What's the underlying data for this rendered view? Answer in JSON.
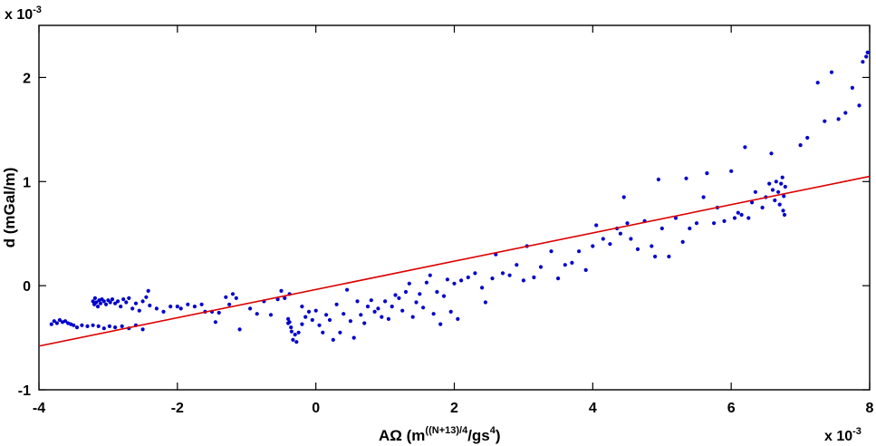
{
  "chart_data": {
    "type": "scatter",
    "xlabel_main": "AΩ  (m",
    "xlabel_sup1": "((N+13)/4",
    "xlabel_mid": "/gs",
    "xlabel_sup2": "4",
    "xlabel_end": ")",
    "ylabel": "d  (mGal/m)",
    "x_multiplier_base": "x 10",
    "x_multiplier_exp": "-3",
    "y_multiplier_base": "x 10",
    "y_multiplier_exp": "-3",
    "xlim": [
      -4,
      8
    ],
    "ylim": [
      -1,
      2.5
    ],
    "xticks": [
      -4,
      -2,
      0,
      2,
      4,
      6,
      8
    ],
    "xtick_labels": [
      "-4",
      "-2",
      "0",
      "2",
      "4",
      "6",
      "8"
    ],
    "yticks": [
      -1,
      0,
      1,
      2
    ],
    "ytick_labels": [
      "-1",
      "0",
      "1",
      "2"
    ],
    "grid": false,
    "colors": {
      "points": "#0000cc",
      "fit_line": "#dd0000",
      "axes": "#000000"
    },
    "fit_line": {
      "x": [
        -4,
        8
      ],
      "y": [
        -0.58,
        1.05
      ]
    },
    "series": [
      {
        "points": [
          [
            -3.82,
            -0.37
          ],
          [
            -3.78,
            -0.34
          ],
          [
            -3.74,
            -0.36
          ],
          [
            -3.7,
            -0.33
          ],
          [
            -3.66,
            -0.35
          ],
          [
            -3.62,
            -0.34
          ],
          [
            -3.58,
            -0.36
          ],
          [
            -3.54,
            -0.37
          ],
          [
            -3.5,
            -0.38
          ],
          [
            -3.45,
            -0.4
          ],
          [
            -3.38,
            -0.38
          ],
          [
            -3.3,
            -0.39
          ],
          [
            -3.22,
            -0.38
          ],
          [
            -3.14,
            -0.39
          ],
          [
            -3.06,
            -0.41
          ],
          [
            -2.98,
            -0.39
          ],
          [
            -2.9,
            -0.4
          ],
          [
            -2.8,
            -0.39
          ],
          [
            -2.7,
            -0.41
          ],
          [
            -2.6,
            -0.38
          ],
          [
            -2.5,
            -0.42
          ],
          [
            -3.22,
            -0.15
          ],
          [
            -3.2,
            -0.18
          ],
          [
            -3.19,
            -0.12
          ],
          [
            -3.17,
            -0.16
          ],
          [
            -3.15,
            -0.2
          ],
          [
            -3.13,
            -0.14
          ],
          [
            -3.11,
            -0.17
          ],
          [
            -3.09,
            -0.13
          ],
          [
            -3.06,
            -0.15
          ],
          [
            -3.03,
            -0.18
          ],
          [
            -3.0,
            -0.14
          ],
          [
            -2.97,
            -0.16
          ],
          [
            -2.94,
            -0.13
          ],
          [
            -2.9,
            -0.17
          ],
          [
            -2.86,
            -0.15
          ],
          [
            -2.82,
            -0.2
          ],
          [
            -2.78,
            -0.13
          ],
          [
            -2.74,
            -0.16
          ],
          [
            -2.7,
            -0.12
          ],
          [
            -2.65,
            -0.22
          ],
          [
            -2.6,
            -0.17
          ],
          [
            -2.55,
            -0.24
          ],
          [
            -2.5,
            -0.15
          ],
          [
            -2.45,
            -0.11
          ],
          [
            -2.4,
            -0.19
          ],
          [
            -2.42,
            -0.05
          ],
          [
            -2.3,
            -0.22
          ],
          [
            -2.2,
            -0.25
          ],
          [
            -2.1,
            -0.2
          ],
          [
            -2.0,
            -0.2
          ],
          [
            -1.95,
            -0.22
          ],
          [
            -1.85,
            -0.18
          ],
          [
            -1.75,
            -0.2
          ],
          [
            -1.65,
            -0.18
          ],
          [
            -1.6,
            -0.25
          ],
          [
            -1.5,
            -0.25
          ],
          [
            -1.4,
            -0.26
          ],
          [
            -1.3,
            -0.11
          ],
          [
            -1.25,
            -0.18
          ],
          [
            -1.2,
            -0.08
          ],
          [
            -1.15,
            -0.12
          ],
          [
            -1.45,
            -0.35
          ],
          [
            -1.1,
            -0.42
          ],
          [
            -0.95,
            -0.22
          ],
          [
            -0.85,
            -0.27
          ],
          [
            -0.75,
            -0.15
          ],
          [
            -0.65,
            -0.28
          ],
          [
            -0.55,
            -0.13
          ],
          [
            -0.5,
            -0.05
          ],
          [
            -0.45,
            -0.12
          ],
          [
            -0.4,
            -0.32
          ],
          [
            -0.4,
            -0.36
          ],
          [
            -0.38,
            -0.35
          ],
          [
            -0.36,
            -0.4
          ],
          [
            -0.35,
            -0.44
          ],
          [
            -0.33,
            -0.52
          ],
          [
            -0.3,
            -0.47
          ],
          [
            -0.28,
            -0.54
          ],
          [
            -0.25,
            -0.45
          ],
          [
            -0.2,
            -0.37
          ],
          [
            -0.38,
            -0.08
          ],
          [
            -0.2,
            -0.2
          ],
          [
            -0.15,
            -0.3
          ],
          [
            -0.1,
            -0.25
          ],
          [
            -0.05,
            -0.33
          ],
          [
            0.0,
            -0.24
          ],
          [
            0.05,
            -0.38
          ],
          [
            0.1,
            -0.45
          ],
          [
            0.15,
            -0.28
          ],
          [
            0.2,
            -0.33
          ],
          [
            0.25,
            -0.52
          ],
          [
            0.3,
            -0.18
          ],
          [
            0.35,
            -0.45
          ],
          [
            0.4,
            -0.27
          ],
          [
            0.45,
            -0.04
          ],
          [
            0.5,
            -0.34
          ],
          [
            0.55,
            -0.5
          ],
          [
            0.6,
            -0.15
          ],
          [
            0.65,
            -0.28
          ],
          [
            0.7,
            -0.36
          ],
          [
            0.75,
            -0.2
          ],
          [
            0.8,
            -0.14
          ],
          [
            0.85,
            -0.25
          ],
          [
            0.9,
            -0.22
          ],
          [
            0.95,
            -0.3
          ],
          [
            1.0,
            -0.15
          ],
          [
            1.05,
            -0.32
          ],
          [
            1.1,
            -0.2
          ],
          [
            1.15,
            -0.09
          ],
          [
            1.2,
            -0.12
          ],
          [
            1.25,
            -0.24
          ],
          [
            1.3,
            -0.06
          ],
          [
            1.35,
            0.02
          ],
          [
            1.4,
            -0.3
          ],
          [
            1.45,
            -0.16
          ],
          [
            1.5,
            -0.08
          ],
          [
            1.55,
            -0.21
          ],
          [
            1.6,
            0.03
          ],
          [
            1.65,
            0.1
          ],
          [
            1.7,
            -0.27
          ],
          [
            1.75,
            -0.06
          ],
          [
            1.8,
            -0.37
          ],
          [
            1.85,
            -0.1
          ],
          [
            1.9,
            0.06
          ],
          [
            1.95,
            -0.25
          ],
          [
            2.0,
            0.02
          ],
          [
            2.05,
            -0.32
          ],
          [
            2.1,
            0.05
          ],
          [
            2.2,
            0.08
          ],
          [
            2.3,
            0.12
          ],
          [
            2.4,
            -0.02
          ],
          [
            2.45,
            -0.16
          ],
          [
            2.55,
            0.07
          ],
          [
            2.6,
            0.3
          ],
          [
            2.7,
            0.12
          ],
          [
            2.8,
            0.1
          ],
          [
            2.9,
            0.2
          ],
          [
            3.0,
            0.05
          ],
          [
            3.05,
            0.38
          ],
          [
            3.15,
            0.08
          ],
          [
            3.25,
            0.18
          ],
          [
            3.4,
            0.33
          ],
          [
            3.5,
            0.07
          ],
          [
            3.6,
            0.2
          ],
          [
            3.7,
            0.22
          ],
          [
            3.8,
            0.33
          ],
          [
            3.9,
            0.15
          ],
          [
            4.0,
            0.38
          ],
          [
            4.05,
            0.58
          ],
          [
            4.15,
            0.45
          ],
          [
            4.25,
            0.4
          ],
          [
            4.35,
            0.55
          ],
          [
            4.4,
            0.5
          ],
          [
            4.45,
            0.85
          ],
          [
            4.5,
            0.6
          ],
          [
            4.55,
            0.45
          ],
          [
            4.65,
            0.35
          ],
          [
            4.75,
            0.62
          ],
          [
            4.85,
            0.38
          ],
          [
            4.9,
            0.28
          ],
          [
            4.95,
            1.02
          ],
          [
            5.0,
            0.55
          ],
          [
            5.1,
            0.28
          ],
          [
            5.2,
            0.65
          ],
          [
            5.3,
            0.42
          ],
          [
            5.35,
            1.03
          ],
          [
            5.4,
            0.55
          ],
          [
            5.5,
            0.6
          ],
          [
            5.6,
            0.85
          ],
          [
            5.65,
            1.08
          ],
          [
            5.75,
            0.6
          ],
          [
            5.8,
            0.75
          ],
          [
            5.9,
            0.62
          ],
          [
            6.0,
            1.1
          ],
          [
            6.05,
            0.65
          ],
          [
            6.1,
            0.7
          ],
          [
            6.15,
            0.68
          ],
          [
            6.2,
            1.33
          ],
          [
            6.25,
            0.65
          ],
          [
            6.3,
            0.8
          ],
          [
            6.35,
            0.9
          ],
          [
            6.45,
            0.75
          ],
          [
            6.5,
            0.85
          ],
          [
            6.55,
            0.98
          ],
          [
            6.58,
            1.27
          ],
          [
            6.6,
            0.92
          ],
          [
            6.63,
            0.82
          ],
          [
            6.65,
            1.0
          ],
          [
            6.68,
            0.9
          ],
          [
            6.7,
            0.78
          ],
          [
            6.72,
            0.98
          ],
          [
            6.74,
            1.04
          ],
          [
            6.75,
            0.72
          ],
          [
            6.76,
            0.86
          ],
          [
            6.77,
            0.68
          ],
          [
            6.78,
            0.95
          ],
          [
            7.0,
            1.35
          ],
          [
            7.1,
            1.42
          ],
          [
            7.25,
            1.95
          ],
          [
            7.35,
            1.58
          ],
          [
            7.45,
            2.05
          ],
          [
            7.55,
            1.6
          ],
          [
            7.65,
            1.66
          ],
          [
            7.75,
            1.9
          ],
          [
            7.85,
            1.73
          ],
          [
            7.9,
            2.15
          ],
          [
            7.95,
            2.2
          ],
          [
            7.97,
            2.24
          ]
        ]
      }
    ]
  }
}
